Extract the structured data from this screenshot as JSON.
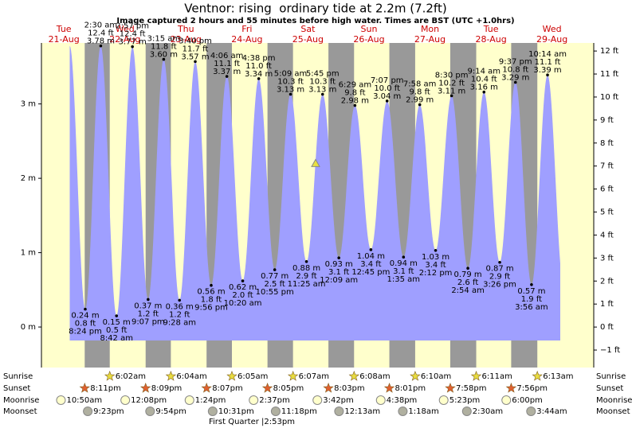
{
  "chart_data": {
    "type": "tide",
    "title": "Ventnor: rising  ordinary tide at 2.2m (7.2ft)",
    "subtitle": "Image captured 2 hours and 55 minutes before high water. Times are BST (UTC +1.0hrs)",
    "current_level": 2.2,
    "ylim": [
      -0.545,
      3.82
    ],
    "yticks": [
      {
        "value": 0,
        "label": "0 m"
      },
      {
        "value": 1,
        "label": "1 m"
      },
      {
        "value": 2,
        "label": "2 m"
      },
      {
        "value": 3,
        "label": "3 m"
      }
    ],
    "y2lim": [
      -1.76,
      12.35
    ],
    "y2ticks": [
      {
        "value": -1,
        "label": "−1 ft"
      },
      {
        "value": 0,
        "label": "0 ft"
      },
      {
        "value": 1,
        "label": "1 ft"
      },
      {
        "value": 2,
        "label": "2 ft"
      },
      {
        "value": 3,
        "label": "3 ft"
      },
      {
        "value": 4,
        "label": "4 ft"
      },
      {
        "value": 5,
        "label": "5 ft"
      },
      {
        "value": 6,
        "label": "6 ft"
      },
      {
        "value": 7,
        "label": "7 ft"
      },
      {
        "value": 8,
        "label": "8 ft"
      },
      {
        "value": 9,
        "label": "9 ft"
      },
      {
        "value": 10,
        "label": "10 ft"
      },
      {
        "value": 11,
        "label": "11 ft"
      },
      {
        "value": 12,
        "label": "12 ft"
      }
    ],
    "color": "#9f9fff",
    "rows": [
      "Sunrise",
      "Sunset",
      "Moonrise",
      "Moonset"
    ],
    "moon_phase": "First Quarter |2:53pm",
    "days": [
      {
        "name": "Tue",
        "date": "21-Aug",
        "sunset": "8:11pm",
        "moonrise": "10:50am",
        "moonset": "9:23pm",
        "tides": {
          "time": [
            "8:24 pm"
          ],
          "values": [
            0.24
          ],
          "value_labels": [
            "0.24 m"
          ],
          "ft_labels": [
            "0.8 ft"
          ]
        }
      },
      {
        "name": "Wed",
        "date": "22-Aug",
        "sunrise": "6:02am",
        "sunset": "8:09pm",
        "moonrise": "12:08pm",
        "moonset": "9:54pm",
        "tides": {
          "time": [
            "2:30 am",
            "8:42 am",
            "2:57 pm",
            "9:07 pm"
          ],
          "values": [
            3.78,
            0.15,
            3.77,
            0.37
          ],
          "value_labels": [
            "3.78 m",
            "0.15 m",
            "3.77 m",
            "0.37 m"
          ],
          "ft_labels": [
            "12.4 ft",
            "0.5 ft",
            "12.4 ft",
            "1.2 ft"
          ]
        }
      },
      {
        "name": "Thu",
        "date": "23-Aug",
        "sunrise": "6:04am",
        "sunset": "8:07pm",
        "moonrise": "1:24pm",
        "moonset": "10:31pm",
        "tides": {
          "time": [
            "3:15 am",
            "9:28 am",
            "3:40 pm",
            "9:56 pm"
          ],
          "values": [
            3.6,
            0.36,
            3.57,
            0.56
          ],
          "value_labels": [
            "3.60 m",
            "0.36 m",
            "3.57 m",
            "0.56 m"
          ],
          "ft_labels": [
            "11.8 ft",
            "1.2 ft",
            "11.7 ft",
            "1.8 ft"
          ]
        }
      },
      {
        "name": "Fri",
        "date": "24-Aug",
        "sunrise": "6:05am",
        "sunset": "8:05pm",
        "moonrise": "2:37pm",
        "moonset": "11:18pm",
        "tides": {
          "time": [
            "4:06 am",
            "10:20 am",
            "4:38 pm",
            "10:55 pm"
          ],
          "values": [
            3.37,
            0.62,
            3.34,
            0.77
          ],
          "value_labels": [
            "3.37 m",
            "0.62 m",
            "3.34 m",
            "0.77 m"
          ],
          "ft_labels": [
            "11.1 ft",
            "2.0 ft",
            "11.0 ft",
            "2.5 ft"
          ]
        }
      },
      {
        "name": "Sat",
        "date": "25-Aug",
        "sunrise": "6:07am",
        "sunset": "8:03pm",
        "moonrise": "3:42pm",
        "tides": {
          "time": [
            "5:09 am",
            "11:25 am",
            "5:45 pm"
          ],
          "values": [
            3.13,
            0.88,
            3.13
          ],
          "value_labels": [
            "3.13 m",
            "0.88 m",
            "3.13 m"
          ],
          "ft_labels": [
            "10.3 ft",
            "2.9 ft",
            "10.3 ft"
          ]
        }
      },
      {
        "name": "Sun",
        "date": "26-Aug",
        "sunrise": "6:08am",
        "sunset": "8:01pm",
        "moonrise": "4:38pm",
        "moonset": "12:13am",
        "tides": {
          "time": [
            "12:09 am",
            "6:29 am",
            "12:45 pm",
            "7:07 pm"
          ],
          "values": [
            0.93,
            2.98,
            1.04,
            3.04
          ],
          "value_labels": [
            "0.93 m",
            "2.98 m",
            "1.04 m",
            "3.04 m"
          ],
          "ft_labels": [
            "3.1 ft",
            "9.8 ft",
            "3.4 ft",
            "10.0 ft"
          ]
        }
      },
      {
        "name": "Mon",
        "date": "27-Aug",
        "sunrise": "6:10am",
        "sunset": "7:58pm",
        "moonrise": "5:23pm",
        "moonset": "1:18am",
        "tides": {
          "time": [
            "1:35 am",
            "7:58 am",
            "2:12 pm",
            "8:30 pm"
          ],
          "values": [
            0.94,
            2.99,
            1.03,
            3.11
          ],
          "value_labels": [
            "0.94 m",
            "2.99 m",
            "1.03 m",
            "3.11 m"
          ],
          "ft_labels": [
            "3.1 ft",
            "9.8 ft",
            "3.4 ft",
            "10.2 ft"
          ]
        }
      },
      {
        "name": "Tue",
        "date": "28-Aug",
        "sunrise": "6:11am",
        "sunset": "7:56pm",
        "moonrise": "6:00pm",
        "moonset": "2:30am",
        "tides": {
          "time": [
            "2:54 am",
            "9:14 am",
            "3:26 pm",
            "9:37 pm"
          ],
          "values": [
            0.79,
            3.16,
            0.87,
            3.29
          ],
          "value_labels": [
            "0.79 m",
            "3.16 m",
            "0.87 m",
            "3.29 m"
          ],
          "ft_labels": [
            "2.6 ft",
            "10.4 ft",
            "2.9 ft",
            "10.8 ft"
          ]
        }
      },
      {
        "name": "Wed",
        "date": "29-Aug",
        "sunrise": "6:13am",
        "moonset": "3:44am",
        "tides": {
          "time": [
            "3:56 am",
            "10:14 am"
          ],
          "values": [
            0.57,
            3.39
          ],
          "value_labels": [
            "0.57 m",
            "3.39 m"
          ],
          "ft_labels": [
            "1.9 ft",
            "11.1 ft"
          ]
        }
      }
    ]
  }
}
